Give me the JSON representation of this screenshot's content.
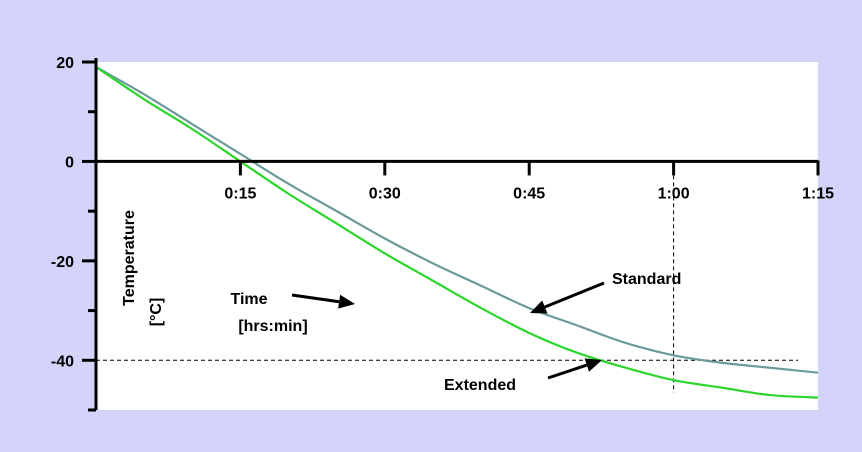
{
  "chart_data": {
    "type": "line",
    "xlabel": "Time [hrs:min]",
    "xlabel_lines": [
      "Time",
      "[hrs:min]"
    ],
    "ylabel": "Temperature [°C]",
    "ylabel_lines": [
      "Temperature",
      "[°C]"
    ],
    "x_unit": "minutes",
    "xlim": [
      0,
      75
    ],
    "ylim": [
      -50,
      20
    ],
    "x_ticks": [
      {
        "value": 15,
        "label": "0:15"
      },
      {
        "value": 30,
        "label": "0:30"
      },
      {
        "value": 45,
        "label": "0:45"
      },
      {
        "value": 60,
        "label": "1:00"
      },
      {
        "value": 75,
        "label": "1:15"
      }
    ],
    "y_ticks": [
      {
        "value": 20,
        "label": "20"
      },
      {
        "value": 0,
        "label": "0"
      },
      {
        "value": -20,
        "label": "-20"
      },
      {
        "value": -40,
        "label": "-40"
      }
    ],
    "reference_lines": [
      {
        "orientation": "horizontal",
        "value": -40,
        "style": "dashed"
      },
      {
        "orientation": "vertical",
        "value": 60,
        "style": "dashed"
      }
    ],
    "series": [
      {
        "name": "Standard",
        "color": "#6b9a9a",
        "x": [
          0,
          5,
          10,
          15,
          20,
          25,
          30,
          35,
          40,
          45,
          50,
          55,
          60,
          65,
          70,
          75
        ],
        "y": [
          19,
          13.5,
          7.5,
          1.5,
          -4.5,
          -10,
          -15.5,
          -20.5,
          -25,
          -29.5,
          -33,
          -36.5,
          -39,
          -40.5,
          -41.5,
          -42.5
        ]
      },
      {
        "name": "Extended",
        "color": "#2bd62b",
        "x": [
          0,
          5,
          10,
          15,
          20,
          25,
          30,
          35,
          40,
          45,
          50,
          55,
          60,
          65,
          70,
          75
        ],
        "y": [
          19,
          12.5,
          6.5,
          0,
          -6.5,
          -12.5,
          -18.5,
          -24,
          -29.5,
          -34.5,
          -38.5,
          -41.5,
          -44,
          -45.5,
          -47,
          -47.5
        ]
      }
    ],
    "annotations": [
      {
        "text": "Standard",
        "target_series": "Standard"
      },
      {
        "text": "Extended",
        "target_series": "Extended"
      }
    ],
    "grid": false,
    "colors": {
      "background": "#d4d4fa",
      "plot_area": "#ffffff",
      "axis": "#000000"
    }
  }
}
